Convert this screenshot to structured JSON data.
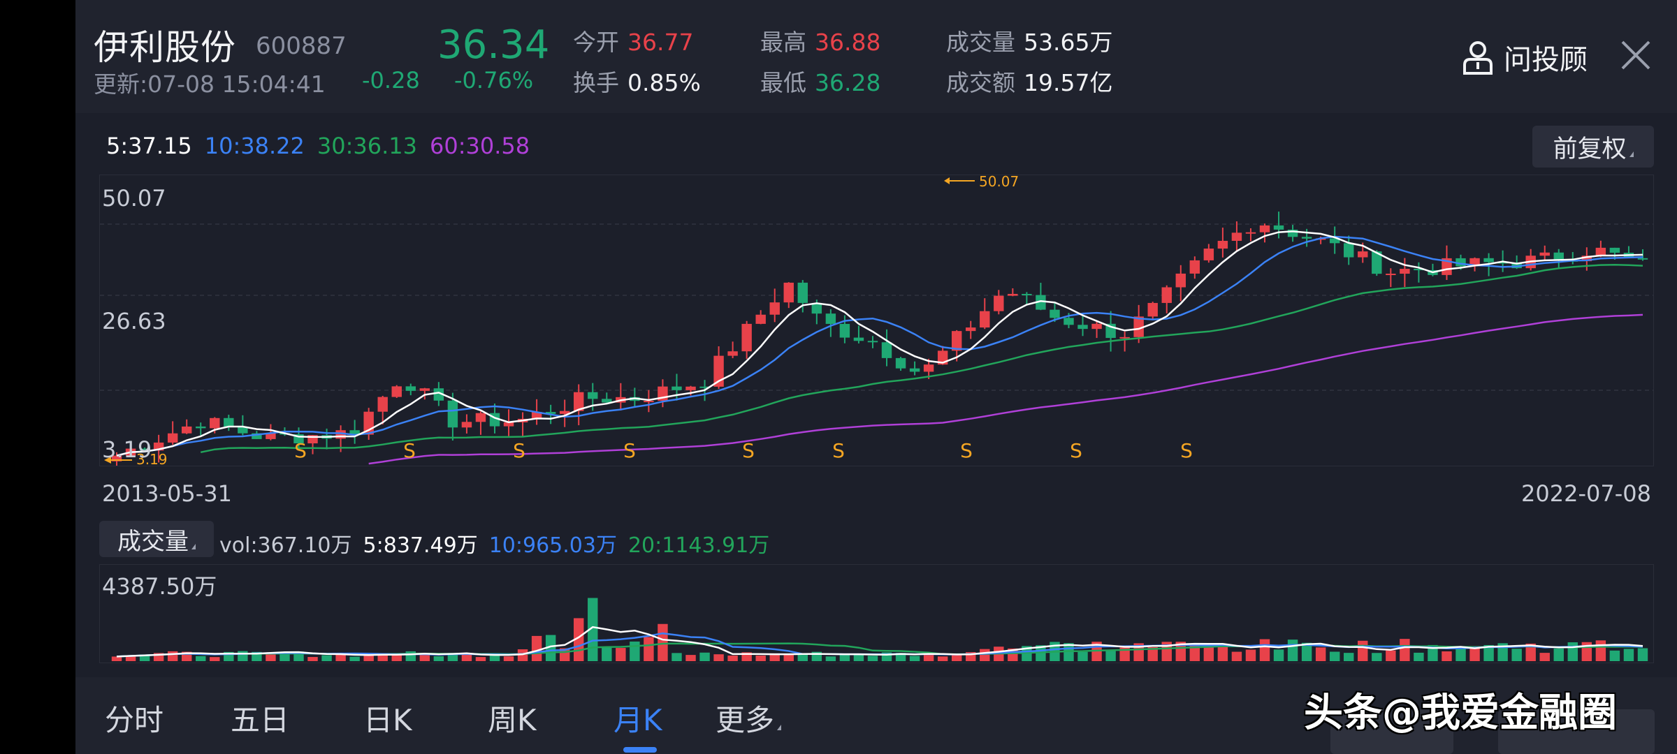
{
  "header": {
    "name": "伊利股份",
    "code": "600887",
    "update_time": "更新:07-08 15:04:41",
    "price": "36.34",
    "change": "-0.28",
    "change_pct": "-0.76%",
    "stats": {
      "open_label": "今开",
      "open": "36.77",
      "turnover_label": "换手",
      "turnover": "0.85%",
      "high_label": "最高",
      "high": "36.88",
      "low_label": "最低",
      "low": "36.28",
      "volume_label": "成交量",
      "volume": "53.65万",
      "amount_label": "成交额",
      "amount": "19.57亿"
    },
    "advisor_label": "问投顾"
  },
  "ma_legend": {
    "ma5": "5:37.15",
    "ma10": "10:38.22",
    "ma30": "30:36.13",
    "ma60": "60:30.58"
  },
  "adjust_button": "前复权",
  "colors": {
    "up": "#e8424a",
    "down": "#1fa874",
    "ma5": "#ffffff",
    "ma10": "#3b82f6",
    "ma30": "#22a55b",
    "ma60": "#b040d8",
    "accent": "#3b82f6",
    "marker": "#f5a623"
  },
  "price_axis": {
    "top": "50.07",
    "mid": "26.63",
    "bottom": "3.19"
  },
  "chart_data": {
    "type": "candlestick",
    "period": "monthly",
    "start_date": "2013-05-31",
    "end_date": "2022-07-08",
    "ylim": [
      3.19,
      50.07
    ],
    "max_marker": "50.07",
    "min_marker": "3.19",
    "signal_marker": "S",
    "signal_count": 9,
    "series": [
      {
        "name": "MA5",
        "value": "37.15"
      },
      {
        "name": "MA10",
        "value": "38.22"
      },
      {
        "name": "MA30",
        "value": "36.13"
      },
      {
        "name": "MA60",
        "value": "30.58"
      }
    ]
  },
  "volume": {
    "label": "成交量",
    "vol": "vol:367.10万",
    "ma5": "5:837.49万",
    "ma10": "10:965.03万",
    "ma20": "20:1143.91万",
    "max": "4387.50万"
  },
  "tabs": [
    "分时",
    "五日",
    "日K",
    "周K",
    "月K",
    "更多"
  ],
  "watermark": "头条@我爱金融圈"
}
